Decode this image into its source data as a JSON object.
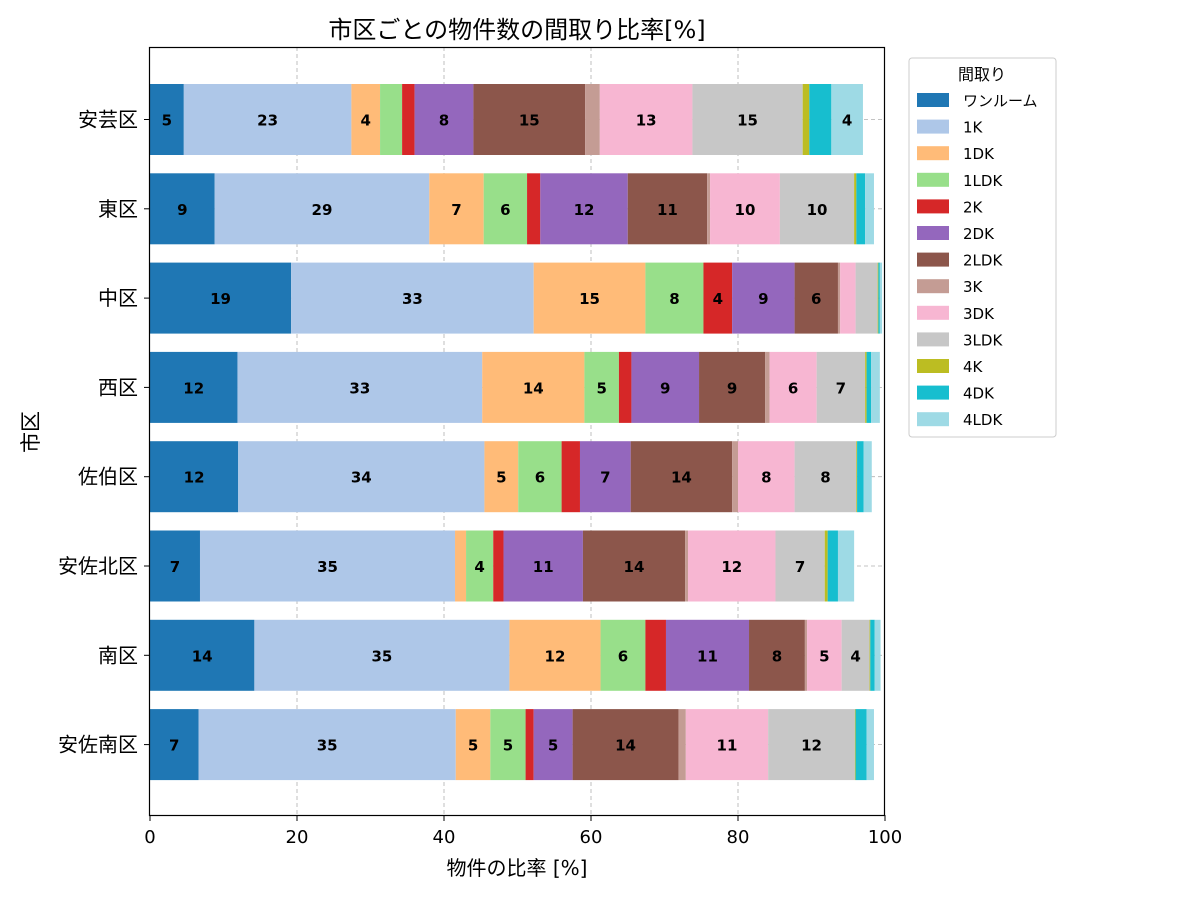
{
  "chart_data": {
    "type": "bar",
    "orientation": "horizontal",
    "stacked": true,
    "title": "市区ごとの物件数の間取り比率[%]",
    "xlabel": "物件の比率 [%]",
    "ylabel": "市区",
    "xlim": [
      0,
      100
    ],
    "xticks": [
      0,
      20,
      40,
      60,
      80,
      100
    ],
    "grid": true,
    "legend_title": "間取り",
    "legend_position": "outside-right-top",
    "categories": [
      "安芸区",
      "東区",
      "中区",
      "西区",
      "佐伯区",
      "安佐北区",
      "南区",
      "安佐南区"
    ],
    "label_threshold": 3.5,
    "series": [
      {
        "name": "ワンルーム",
        "color": "#1f77b4",
        "values": [
          4.6,
          8.8,
          19.2,
          11.9,
          12.0,
          6.8,
          14.2,
          6.6
        ]
      },
      {
        "name": "1K",
        "color": "#aec7e8",
        "values": [
          22.8,
          29.2,
          33.0,
          33.3,
          33.5,
          34.7,
          34.7,
          35.0
        ]
      },
      {
        "name": "1DK",
        "color": "#ffbb78",
        "values": [
          3.9,
          7.4,
          15.2,
          13.9,
          4.6,
          1.5,
          12.4,
          4.7
        ]
      },
      {
        "name": "1LDK",
        "color": "#98df8a",
        "values": [
          3.0,
          5.9,
          7.9,
          4.7,
          5.9,
          3.7,
          6.1,
          4.8
        ]
      },
      {
        "name": "2K",
        "color": "#d62728",
        "values": [
          1.7,
          1.8,
          3.9,
          1.7,
          2.5,
          1.4,
          2.8,
          1.1
        ]
      },
      {
        "name": "2DK",
        "color": "#9467bd",
        "values": [
          8.0,
          11.9,
          8.5,
          9.2,
          6.9,
          10.8,
          11.3,
          5.3
        ]
      },
      {
        "name": "2LDK",
        "color": "#8c564b",
        "values": [
          15.2,
          10.8,
          5.9,
          9.0,
          13.8,
          13.9,
          7.6,
          14.4
        ]
      },
      {
        "name": "3K",
        "color": "#c49c94",
        "values": [
          2.0,
          0.4,
          0.3,
          0.6,
          0.8,
          0.4,
          0.3,
          1.0
        ]
      },
      {
        "name": "3DK",
        "color": "#f7b6d2",
        "values": [
          12.6,
          9.5,
          2.1,
          6.4,
          7.7,
          11.9,
          4.7,
          11.2
        ]
      },
      {
        "name": "3LDK",
        "color": "#c7c7c7",
        "values": [
          15.0,
          10.1,
          3.0,
          6.6,
          8.4,
          6.7,
          3.8,
          11.8
        ]
      },
      {
        "name": "4K",
        "color": "#bcbd22",
        "values": [
          0.9,
          0.3,
          0.1,
          0.2,
          0.1,
          0.4,
          0.1,
          0.1
        ]
      },
      {
        "name": "4DK",
        "color": "#17becf",
        "values": [
          3.0,
          1.2,
          0.2,
          0.6,
          0.9,
          1.4,
          0.6,
          1.5
        ]
      },
      {
        "name": "4LDK",
        "color": "#9edae5",
        "values": [
          4.3,
          1.2,
          0.3,
          1.2,
          1.1,
          2.2,
          0.8,
          1.0
        ]
      }
    ]
  }
}
